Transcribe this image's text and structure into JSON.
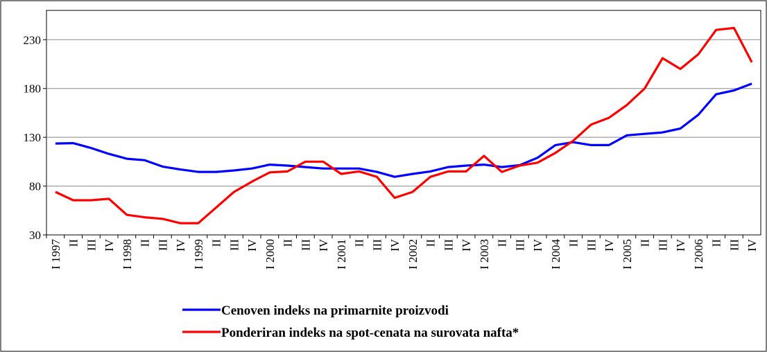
{
  "chart_data": {
    "type": "line",
    "categories": [
      "I 1997",
      "II",
      "III",
      "IV",
      "I 1998",
      "II",
      "III",
      "IV",
      "I 1999",
      "II",
      "III",
      "IV",
      "I 2000",
      "II",
      "III",
      "IV",
      "I 2001",
      "II",
      "III",
      "IV",
      "I 2002",
      "II",
      "III",
      "IV",
      "I 2003",
      "II",
      "III",
      "IV",
      "I 2004",
      "II",
      "III",
      "IV",
      "I 2005",
      "II",
      "III",
      "IV",
      "I 2006",
      "II",
      "III",
      "IV"
    ],
    "series": [
      {
        "name": "Cenoven indeks na primarnite proizvodi",
        "color": "#0000ff",
        "values": [
          123.6,
          124,
          119,
          113,
          108,
          106.5,
          100,
          97,
          94.5,
          94.5,
          96,
          98,
          102,
          101,
          99.5,
          98,
          98,
          98,
          94.5,
          89.5,
          92.5,
          95,
          99.5,
          101,
          102,
          99.5,
          101.5,
          109,
          122,
          125,
          122,
          122,
          132,
          133.5,
          135,
          139,
          153,
          174,
          178,
          185
        ]
      },
      {
        "name": "Ponderiran indeks na spot-cenata na surovata nafta*",
        "color": "#ff0000",
        "values": [
          74,
          65.5,
          65.5,
          67,
          50.5,
          48,
          46.5,
          42,
          42,
          58,
          74,
          84.5,
          94,
          95,
          105,
          105,
          92.5,
          95,
          89.5,
          68,
          74,
          89.5,
          95,
          95,
          111,
          94.5,
          101,
          104,
          114,
          126.5,
          143,
          150,
          163,
          180,
          211,
          200,
          215,
          240,
          242,
          207
        ]
      }
    ],
    "ylim": [
      30,
      260
    ],
    "yticks": [
      30,
      80,
      130,
      180,
      230
    ],
    "grid": true
  }
}
